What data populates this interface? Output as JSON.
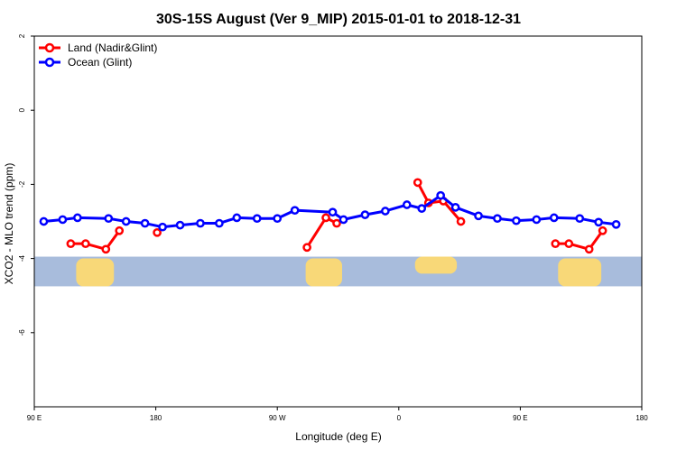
{
  "chart_data": {
    "type": "line",
    "title": "30S-15S August (Ver 9_MIP)   2015-01-01 to 2018-12-31",
    "xlabel": "Longitude (deg E)",
    "ylabel": "XCO2 - MLO trend (ppm)",
    "xlim": [
      90,
      540
    ],
    "ylim": [
      -8,
      2
    ],
    "x_ticks": [
      {
        "value": 90,
        "label": "90 E"
      },
      {
        "value": 180,
        "label": "180"
      },
      {
        "value": 270,
        "label": "90 W"
      },
      {
        "value": 360,
        "label": "0"
      },
      {
        "value": 450,
        "label": "90 E"
      },
      {
        "value": 540,
        "label": "180"
      }
    ],
    "y_ticks": [
      {
        "value": 2,
        "label": "2"
      },
      {
        "value": 0,
        "label": "0"
      },
      {
        "value": -2,
        "label": "-2"
      },
      {
        "value": -4,
        "label": "-4"
      },
      {
        "value": -6,
        "label": "-6"
      }
    ],
    "grid": false,
    "legend_position": "top-left",
    "series": [
      {
        "name": "Land (Nadir&Glint)",
        "color": "#ff0000",
        "segments": [
          [
            [
              117,
              -3.6
            ],
            [
              128,
              -3.6
            ],
            [
              143,
              -3.75
            ],
            [
              153,
              -3.25
            ]
          ],
          [
            [
              181,
              -3.3
            ]
          ],
          [
            [
              292,
              -3.7
            ],
            [
              306,
              -2.9
            ],
            [
              314,
              -3.05
            ]
          ],
          [
            [
              374,
              -1.95
            ],
            [
              382,
              -2.5
            ],
            [
              393,
              -2.45
            ],
            [
              406,
              -3.0
            ]
          ],
          [
            [
              476,
              -3.6
            ],
            [
              486,
              -3.6
            ],
            [
              501,
              -3.75
            ],
            [
              511,
              -3.25
            ]
          ]
        ]
      },
      {
        "name": "Ocean (Glint)",
        "color": "#0000ff",
        "segments": [
          [
            [
              97,
              -3.0
            ],
            [
              111,
              -2.95
            ],
            [
              122,
              -2.9
            ],
            [
              145,
              -2.92
            ],
            [
              158,
              -3.0
            ],
            [
              172,
              -3.05
            ],
            [
              185,
              -3.15
            ],
            [
              198,
              -3.1
            ],
            [
              213,
              -3.05
            ],
            [
              227,
              -3.05
            ],
            [
              240,
              -2.9
            ],
            [
              255,
              -2.92
            ],
            [
              270,
              -2.92
            ],
            [
              283,
              -2.7
            ],
            [
              311,
              -2.75
            ],
            [
              319,
              -2.95
            ],
            [
              335,
              -2.82
            ],
            [
              350,
              -2.72
            ],
            [
              366,
              -2.55
            ],
            [
              377,
              -2.65
            ],
            [
              391,
              -2.3
            ],
            [
              402,
              -2.62
            ],
            [
              419,
              -2.85
            ],
            [
              433,
              -2.92
            ],
            [
              447,
              -2.98
            ],
            [
              462,
              -2.95
            ],
            [
              475,
              -2.9
            ],
            [
              494,
              -2.92
            ],
            [
              508,
              -3.02
            ],
            [
              521,
              -3.08
            ]
          ]
        ]
      }
    ],
    "background": {
      "band_ylim": [
        -4.75,
        -3.95
      ],
      "ocean_color": "#a8bcdc",
      "land_color": "#f8d878",
      "land_spans": [
        [
          121,
          149
        ],
        [
          291,
          318
        ],
        [
          372,
          403
        ],
        [
          478,
          510
        ]
      ]
    }
  }
}
